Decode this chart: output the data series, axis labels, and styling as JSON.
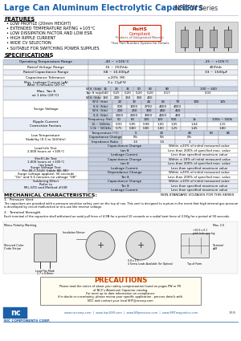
{
  "title_main": "Large Can Aluminum Electrolytic Capacitors",
  "title_series": "NRLFW Series",
  "features_title": "FEATURES",
  "features": [
    "LOW PROFILE (20mm HEIGHT)",
    "EXTENDED TEMPERATURE RATING +105°C",
    "LOW DISSIPATION FACTOR AND LOW ESR",
    "HIGH RIPPLE CURRENT",
    "WIDE CV SELECTION",
    "SUITABLE FOR SWITCHING POWER SUPPLIES"
  ],
  "spec_title": "SPECIFICATIONS",
  "mech_title": "MECHANICAL CHARACTERISTICS:",
  "mech_note": "NON-STANDARD VOLTAGES FOR THIS SERIES",
  "bg_color": "#ffffff",
  "title_color": "#1a5fa8",
  "header_blue": "#1a5fa8",
  "table_header_bg": "#c5cfe0",
  "table_alt_bg": "#e8ecf4",
  "table_white_bg": "#ffffff",
  "border_color": "#999999",
  "text_color": "#000000"
}
